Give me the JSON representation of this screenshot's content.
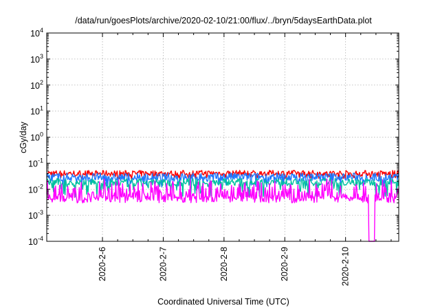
{
  "chart_data": {
    "type": "line",
    "title": "/data/run/goesPlots/archive/2020-02-10/21:00/flux/../bryn/5daysEarthData.plot",
    "xlabel": "Coordinated Universal Time (UTC)",
    "ylabel": "cGy/day",
    "yscale": "log",
    "ylim": [
      0.0001,
      10000
    ],
    "y_ticks": [
      {
        "base": "10",
        "exp": "-4",
        "value": 0.0001
      },
      {
        "base": "10",
        "exp": "-3",
        "value": 0.001
      },
      {
        "base": "10",
        "exp": "-2",
        "value": 0.01
      },
      {
        "base": "10",
        "exp": "-1",
        "value": 0.1
      },
      {
        "base": "10",
        "exp": "0",
        "value": 1
      },
      {
        "base": "10",
        "exp": "1",
        "value": 10
      },
      {
        "base": "10",
        "exp": "2",
        "value": 100
      },
      {
        "base": "10",
        "exp": "3",
        "value": 1000
      },
      {
        "base": "10",
        "exp": "4",
        "value": 10000
      }
    ],
    "xlim": [
      "2020-02-05 02:00",
      "2020-02-10 21:00"
    ],
    "x_ticks": [
      "2020-2-6",
      "2020-2-7",
      "2020-2-8",
      "2020-2-9",
      "2020-2-10"
    ],
    "grid": true,
    "legend": "none",
    "series": [
      {
        "color": "#ff0000",
        "band": [
          0.025,
          0.06
        ],
        "x": [
          "2020-02-05 02:00",
          "2020-02-06 12:00",
          "2020-02-08 00:00",
          "2020-02-09 12:00",
          "2020-02-10 21:00"
        ],
        "values": [
          0.04,
          0.038,
          0.04,
          0.04,
          0.038
        ]
      },
      {
        "color": "#1f78ff",
        "band": [
          0.012,
          0.05
        ],
        "x": [
          "2020-02-05 02:00",
          "2020-02-06 12:00",
          "2020-02-08 00:00",
          "2020-02-09 12:00",
          "2020-02-10 21:00"
        ],
        "values": [
          0.028,
          0.026,
          0.028,
          0.028,
          0.027
        ]
      },
      {
        "color": "#00c0a0",
        "band": [
          0.005,
          0.03
        ],
        "x": [
          "2020-02-05 02:00",
          "2020-02-06 12:00",
          "2020-02-08 00:00",
          "2020-02-09 12:00",
          "2020-02-10 21:00"
        ],
        "values": [
          0.018,
          0.016,
          0.018,
          0.018,
          0.017
        ]
      },
      {
        "color": "#ff00ff",
        "band": [
          0.003,
          0.025
        ],
        "x": [
          "2020-02-05 02:00",
          "2020-02-06 12:00",
          "2020-02-08 00:00",
          "2020-02-09 12:00",
          "2020-02-10 21:00"
        ],
        "values": [
          0.006,
          0.0055,
          0.006,
          0.006,
          0.0055
        ]
      }
    ]
  }
}
